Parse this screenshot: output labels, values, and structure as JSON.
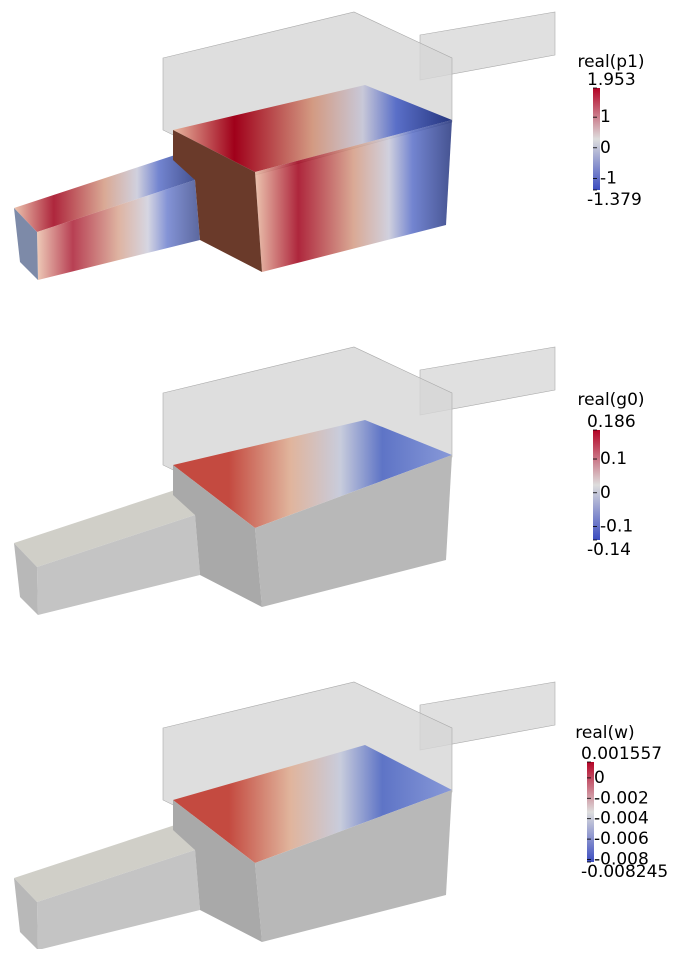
{
  "panels": [
    {
      "title": "real(p1)",
      "clim": [
        -1.379,
        1.953
      ],
      "ticks": [
        1.953,
        1,
        0,
        -1,
        -1.379
      ]
    },
    {
      "title": "real(g0)",
      "clim": [
        -0.14,
        0.186
      ],
      "ticks": [
        0.186,
        0.1,
        0,
        -0.1,
        -0.14
      ]
    },
    {
      "title": "real(w)",
      "clim": [
        -0.008245,
        0.001557
      ],
      "ticks": [
        0.001557,
        0,
        -0.002,
        -0.004,
        -0.006,
        -0.008,
        -0.008245
      ]
    }
  ]
}
